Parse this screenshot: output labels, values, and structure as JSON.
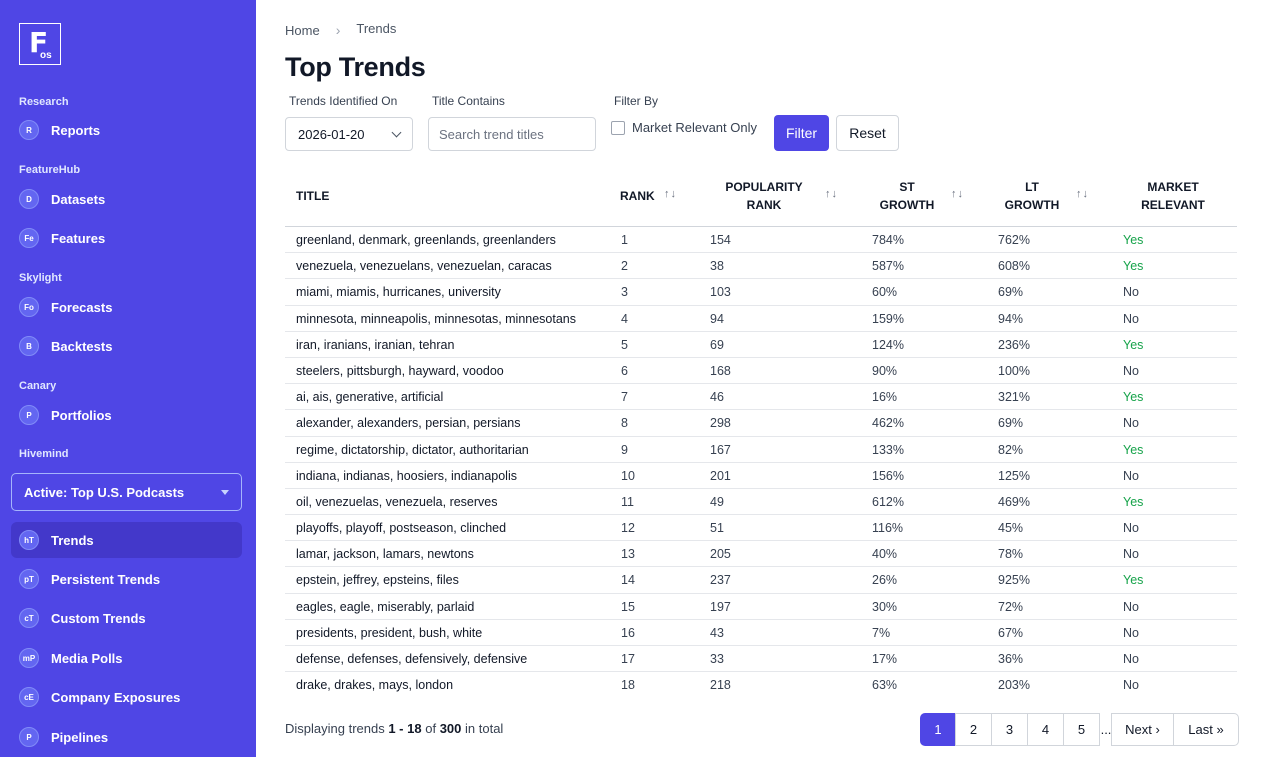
{
  "logo": {
    "big": "F",
    "small": "os"
  },
  "sidebar": {
    "sections": [
      {
        "label": "Research",
        "items": [
          {
            "badge": "R",
            "label": "Reports"
          }
        ]
      },
      {
        "label": "FeatureHub",
        "items": [
          {
            "badge": "D",
            "label": "Datasets"
          },
          {
            "badge": "Fe",
            "label": "Features"
          }
        ]
      },
      {
        "label": "Skylight",
        "items": [
          {
            "badge": "Fo",
            "label": "Forecasts"
          },
          {
            "badge": "B",
            "label": "Backtests"
          }
        ]
      },
      {
        "label": "Canary",
        "items": [
          {
            "badge": "P",
            "label": "Portfolios"
          }
        ]
      },
      {
        "label": "Hivemind",
        "items": []
      }
    ],
    "workspace_select": "Active: Top U.S. Podcasts",
    "hivemind_items": [
      {
        "badge": "hT",
        "label": "Trends",
        "active": true
      },
      {
        "badge": "pT",
        "label": "Persistent Trends"
      },
      {
        "badge": "cT",
        "label": "Custom Trends"
      },
      {
        "badge": "mP",
        "label": "Media Polls"
      },
      {
        "badge": "cE",
        "label": "Company Exposures"
      },
      {
        "badge": "P",
        "label": "Pipelines"
      }
    ]
  },
  "breadcrumb": {
    "home": "Home",
    "current": "Trends",
    "separator": "›"
  },
  "page_title": "Top Trends",
  "filters": {
    "date_label": "Trends Identified On",
    "date_value": "2026-01-20",
    "title_label": "Title Contains",
    "title_placeholder": "Search trend titles",
    "filter_by_label": "Filter By",
    "market_relevant_label": "Market Relevant Only",
    "filter_button": "Filter",
    "reset_button": "Reset"
  },
  "table": {
    "headers": {
      "title": "TITLE",
      "rank": "RANK",
      "popularity_1": "POPULARITY",
      "popularity_2": "RANK",
      "st_1": "ST",
      "st_2": "GROWTH",
      "lt_1": "LT",
      "lt_2": "GROWTH",
      "mr_1": "MARKET",
      "mr_2": "RELEVANT",
      "sort_glyph": "↑↓"
    },
    "rows": [
      {
        "title": "greenland, denmark, greenlands, greenlanders",
        "rank": "1",
        "pop": "154",
        "st": "784%",
        "lt": "762%",
        "mr": "Yes"
      },
      {
        "title": "venezuela, venezuelans, venezuelan, caracas",
        "rank": "2",
        "pop": "38",
        "st": "587%",
        "lt": "608%",
        "mr": "Yes"
      },
      {
        "title": "miami, miamis, hurricanes, university",
        "rank": "3",
        "pop": "103",
        "st": "60%",
        "lt": "69%",
        "mr": "No"
      },
      {
        "title": "minnesota, minneapolis, minnesotas, minnesotans",
        "rank": "4",
        "pop": "94",
        "st": "159%",
        "lt": "94%",
        "mr": "No"
      },
      {
        "title": "iran, iranians, iranian, tehran",
        "rank": "5",
        "pop": "69",
        "st": "124%",
        "lt": "236%",
        "mr": "Yes"
      },
      {
        "title": "steelers, pittsburgh, hayward, voodoo",
        "rank": "6",
        "pop": "168",
        "st": "90%",
        "lt": "100%",
        "mr": "No"
      },
      {
        "title": "ai, ais, generative, artificial",
        "rank": "7",
        "pop": "46",
        "st": "16%",
        "lt": "321%",
        "mr": "Yes"
      },
      {
        "title": "alexander, alexanders, persian, persians",
        "rank": "8",
        "pop": "298",
        "st": "462%",
        "lt": "69%",
        "mr": "No"
      },
      {
        "title": "regime, dictatorship, dictator, authoritarian",
        "rank": "9",
        "pop": "167",
        "st": "133%",
        "lt": "82%",
        "mr": "Yes"
      },
      {
        "title": "indiana, indianas, hoosiers, indianapolis",
        "rank": "10",
        "pop": "201",
        "st": "156%",
        "lt": "125%",
        "mr": "No"
      },
      {
        "title": "oil, venezuelas, venezuela, reserves",
        "rank": "11",
        "pop": "49",
        "st": "612%",
        "lt": "469%",
        "mr": "Yes"
      },
      {
        "title": "playoffs, playoff, postseason, clinched",
        "rank": "12",
        "pop": "51",
        "st": "116%",
        "lt": "45%",
        "mr": "No"
      },
      {
        "title": "lamar, jackson, lamars, newtons",
        "rank": "13",
        "pop": "205",
        "st": "40%",
        "lt": "78%",
        "mr": "No"
      },
      {
        "title": "epstein, jeffrey, epsteins, files",
        "rank": "14",
        "pop": "237",
        "st": "26%",
        "lt": "925%",
        "mr": "Yes"
      },
      {
        "title": "eagles, eagle, miserably, parlaid",
        "rank": "15",
        "pop": "197",
        "st": "30%",
        "lt": "72%",
        "mr": "No"
      },
      {
        "title": "presidents, president, bush, white",
        "rank": "16",
        "pop": "43",
        "st": "7%",
        "lt": "67%",
        "mr": "No"
      },
      {
        "title": "defense, defenses, defensively, defensive",
        "rank": "17",
        "pop": "33",
        "st": "17%",
        "lt": "36%",
        "mr": "No"
      },
      {
        "title": "drake, drakes, mays, london",
        "rank": "18",
        "pop": "218",
        "st": "63%",
        "lt": "203%",
        "mr": "No"
      }
    ]
  },
  "footer": {
    "prefix": "Displaying trends",
    "range": "1 - 18",
    "of": "of",
    "total": "300",
    "suffix": "in total"
  },
  "pagination": {
    "pages": [
      "1",
      "2",
      "3",
      "4",
      "5"
    ],
    "ellipsis": "...",
    "next": "Next ›",
    "last": "Last »",
    "current": "1"
  },
  "colors": {
    "sidebar": "#4f46e5",
    "active_nav": "#4338ca",
    "yes": "#16a34a"
  },
  "icons": {
    "sort": "sort-arrows-icon",
    "dropdown": "chevron-down-icon"
  }
}
